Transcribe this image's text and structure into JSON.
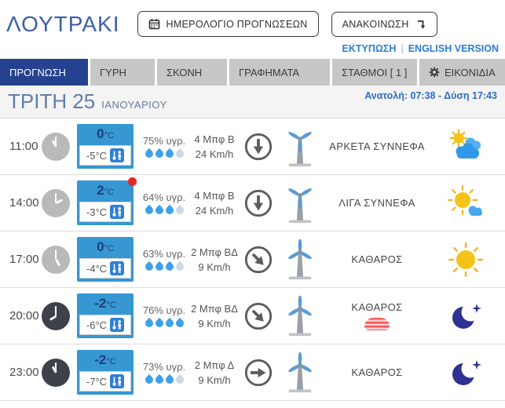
{
  "header": {
    "title": "ΛΟΥΤΡΑΚΙ",
    "calendar_button_label": "ΗΜΕΡΟΛΟΓΙΟ ΠΡΟΓΝΩΣΕΩΝ",
    "announcement_button_label": "ΑΝΑΚΟΙΝΩΣΗ"
  },
  "links": {
    "print": "ΕΚΤΥΠΩΣΗ",
    "separator": "|",
    "english_version": "ENGLISH VERSION"
  },
  "tabs": [
    {
      "label": "ΠΡΟΓΝΩΣΗ",
      "active": true
    },
    {
      "label": "ΓΥΡΗ",
      "active": false
    },
    {
      "label": "ΣΚΟΝΗ",
      "active": false
    },
    {
      "label": "ΓΡΑΦΗΜΑΤΑ",
      "active": false
    },
    {
      "label": "ΣΤΑΘΜΟΙ [ 1 ]",
      "active": false
    },
    {
      "label": "ΕΙΚΟΝΙΔΙΑ",
      "active": false,
      "icon": "gear-icon"
    }
  ],
  "date_bar": {
    "day": "ΤΡΙΤΗ 25",
    "month": "ΙΑΝΟΥΑΡΙΟΥ",
    "sun_info": "Ανατολή: 07:38 - Δύση 17:43"
  },
  "colors": {
    "accent_blue": "#3697d3",
    "active_tab_navy": "#25418f",
    "drop_filled": "#3fa0e8",
    "drop_empty": "#c9d9e8",
    "turbine_strong_green": "#8dc63f",
    "turbine_light_blue": "#5b9bd5",
    "max_dot_red": "#e8261f",
    "moon_navy": "#2e3192",
    "sun_yellow": "#f4c318"
  },
  "rows": [
    {
      "time": "11:00",
      "night": false,
      "temp": "0",
      "temp_unit": "°C",
      "feels_like": "-5°C",
      "max_marker": false,
      "humidity": "75% υγρ.",
      "drops_filled": 3,
      "drops_total": 4,
      "wind_beaufort": "4 Μπφ Β",
      "wind_speed": "24 Km/h",
      "wind_arrow_deg": 0,
      "turbine_color": "#8dc63f",
      "turbine_pose": "Y",
      "condition": "ΑΡΚΕΤΑ ΣΥΝΝΕΦΑ",
      "sky": "sun-clouds",
      "frost": false
    },
    {
      "time": "14:00",
      "night": false,
      "temp": "2",
      "temp_unit": "°C",
      "feels_like": "-3°C",
      "max_marker": true,
      "humidity": "64% υγρ.",
      "drops_filled": 3,
      "drops_total": 4,
      "wind_beaufort": "4 Μπφ Β",
      "wind_speed": "24 Km/h",
      "wind_arrow_deg": 0,
      "turbine_color": "#8dc63f",
      "turbine_pose": "Y",
      "condition": "ΛΙΓΑ ΣΥΝΝΕΦΑ",
      "sky": "sun-small-cloud",
      "frost": false
    },
    {
      "time": "17:00",
      "night": false,
      "temp": "0",
      "temp_unit": "°C",
      "feels_like": "-4°C",
      "max_marker": false,
      "humidity": "63% υγρ.",
      "drops_filled": 3,
      "drops_total": 4,
      "wind_beaufort": "2 Μπφ ΒΔ",
      "wind_speed": "9 Km/h",
      "wind_arrow_deg": -45,
      "turbine_color": "#5b9bd5",
      "turbine_pose": "upright",
      "condition": "ΚΑΘΑΡΟΣ",
      "sky": "sun",
      "frost": false
    },
    {
      "time": "20:00",
      "night": true,
      "temp": "-2",
      "temp_unit": "°C",
      "feels_like": "-6°C",
      "max_marker": false,
      "humidity": "76% υγρ.",
      "drops_filled": 4,
      "drops_total": 4,
      "wind_beaufort": "2 Μπφ ΒΔ",
      "wind_speed": "9 Km/h",
      "wind_arrow_deg": -45,
      "turbine_color": "#5b9bd5",
      "turbine_pose": "upright",
      "condition": "ΚΑΘΑΡΟΣ",
      "sky": "moon",
      "frost": true
    },
    {
      "time": "23:00",
      "night": true,
      "temp": "-2",
      "temp_unit": "°C",
      "feels_like": "-7°C",
      "max_marker": false,
      "humidity": "73% υγρ.",
      "drops_filled": 3,
      "drops_total": 4,
      "wind_beaufort": "2 Μπφ Δ",
      "wind_speed": "9 Km/h",
      "wind_arrow_deg": -90,
      "turbine_color": "#5b9bd5",
      "turbine_pose": "upright",
      "condition": "ΚΑΘΑΡΟΣ",
      "sky": "moon",
      "frost": false
    }
  ]
}
